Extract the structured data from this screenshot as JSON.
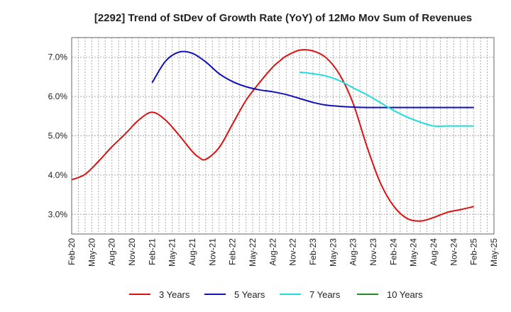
{
  "chart_data": {
    "type": "line",
    "title": "[2292]  Trend of StDev of Growth Rate (YoY) of 12Mo Mov Sum of Revenues",
    "xlabel": "",
    "ylabel": "",
    "x_ticks": [
      "Feb-20",
      "May-20",
      "Aug-20",
      "Nov-20",
      "Feb-21",
      "May-21",
      "Aug-21",
      "Nov-21",
      "Feb-22",
      "May-22",
      "Aug-22",
      "Nov-22",
      "Feb-23",
      "May-23",
      "Aug-23",
      "Nov-23",
      "Feb-24",
      "May-24",
      "Aug-24",
      "Nov-24",
      "Feb-25",
      "May-25"
    ],
    "y_ticks": [
      3.0,
      4.0,
      5.0,
      6.0,
      7.0
    ],
    "y_tick_labels": [
      "3.0%",
      "4.0%",
      "5.0%",
      "6.0%",
      "7.0%"
    ],
    "ylim": [
      2.5,
      7.5
    ],
    "x_range": [
      0,
      63
    ],
    "grid": true,
    "legend_position": "bottom",
    "series": [
      {
        "name": "3 Years",
        "color": "#dd1111",
        "x": [
          0,
          2,
          4,
          6,
          8,
          10,
          12,
          14,
          16,
          18,
          19,
          20,
          22,
          24,
          26,
          28,
          30,
          31,
          32,
          34,
          36,
          38,
          40,
          42,
          44,
          46,
          48,
          50,
          52,
          54,
          56,
          58,
          60
        ],
        "values": [
          3.88,
          4.02,
          4.35,
          4.72,
          5.05,
          5.4,
          5.6,
          5.4,
          5.02,
          4.6,
          4.45,
          4.4,
          4.7,
          5.3,
          5.9,
          6.35,
          6.75,
          6.9,
          7.03,
          7.18,
          7.16,
          6.98,
          6.55,
          5.82,
          4.75,
          3.82,
          3.22,
          2.9,
          2.83,
          2.92,
          3.05,
          3.12,
          3.2
        ]
      },
      {
        "name": "5 Years",
        "color": "#1111bb",
        "x": [
          12,
          14,
          16,
          18,
          20,
          22,
          24,
          26,
          28,
          30,
          32,
          34,
          36,
          38,
          40,
          42,
          44,
          46,
          48,
          50,
          52,
          54,
          56,
          58,
          60
        ],
        "values": [
          6.35,
          6.9,
          7.13,
          7.1,
          6.88,
          6.58,
          6.38,
          6.25,
          6.17,
          6.12,
          6.05,
          5.95,
          5.85,
          5.78,
          5.75,
          5.73,
          5.72,
          5.72,
          5.72,
          5.72,
          5.72,
          5.72,
          5.72,
          5.72,
          5.72
        ]
      },
      {
        "name": "7 Years",
        "color": "#22dddd",
        "x": [
          34,
          36,
          38,
          40,
          42,
          44,
          46,
          48,
          50,
          52,
          54,
          56,
          58,
          60
        ],
        "values": [
          6.62,
          6.58,
          6.52,
          6.4,
          6.22,
          6.05,
          5.85,
          5.65,
          5.48,
          5.35,
          5.25,
          5.25,
          5.25,
          5.25
        ]
      },
      {
        "name": "10 Years",
        "color": "#228822",
        "x": [],
        "values": []
      }
    ]
  }
}
